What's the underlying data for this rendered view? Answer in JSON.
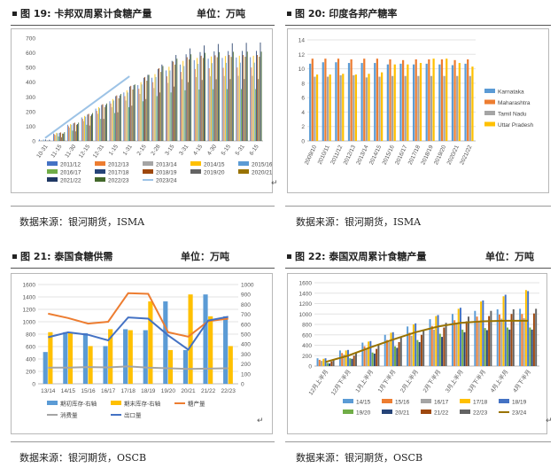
{
  "fig19": {
    "number": "图 19:",
    "title": "卡邦双周累计食糖产量",
    "unit": "单位：万吨",
    "source": "数据来源：银河期货，ISMA",
    "chart_data": {
      "type": "bar",
      "categories": [
        "10-31",
        "11-15",
        "11-30",
        "12-15",
        "12-31",
        "1-15",
        "1-31",
        "2-15",
        "2-28",
        "3-15",
        "3-31",
        "4-15",
        "4-30",
        "5-15",
        "5-31",
        "6-15"
      ],
      "tick_labels": [
        "10-31",
        "11-15",
        "11-30",
        "12-15",
        "12-31",
        "1-15",
        "1-31",
        "2-15",
        "2-28",
        "3-15",
        "3-31",
        "4-15",
        "4-30",
        "5-15",
        "5-31",
        "6-15"
      ],
      "ylim": [
        0,
        700
      ],
      "yticks": [
        0,
        100,
        200,
        300,
        400,
        500,
        600,
        700
      ],
      "series": [
        {
          "name": "2011/12",
          "color": "#4472c4",
          "values": [
            10,
            50,
            110,
            160,
            220,
            270,
            330,
            380,
            430,
            480,
            520,
            550,
            560,
            565,
            568,
            570
          ]
        },
        {
          "name": "2012/13",
          "color": "#ed7d31",
          "values": [
            8,
            45,
            100,
            150,
            205,
            255,
            305,
            355,
            400,
            440,
            470,
            490,
            495,
            498,
            500,
            500
          ]
        },
        {
          "name": "2013/14",
          "color": "#a5a5a5",
          "values": [
            5,
            40,
            90,
            135,
            185,
            230,
            275,
            320,
            360,
            395,
            420,
            435,
            440,
            442,
            443,
            443
          ]
        },
        {
          "name": "2014/15",
          "color": "#ffc000",
          "values": [
            12,
            55,
            115,
            170,
            230,
            285,
            345,
            400,
            455,
            505,
            545,
            565,
            575,
            578,
            580,
            580
          ]
        },
        {
          "name": "2015/16",
          "color": "#5b9bd5",
          "values": [
            10,
            52,
            110,
            165,
            222,
            275,
            330,
            385,
            435,
            480,
            510,
            525,
            530,
            532,
            533,
            533
          ]
        },
        {
          "name": "2016/17",
          "color": "#70ad47",
          "values": [
            5,
            30,
            70,
            110,
            150,
            190,
            230,
            270,
            305,
            330,
            345,
            350,
            352,
            353,
            353,
            353
          ]
        },
        {
          "name": "2017/18",
          "color": "#264478",
          "values": [
            10,
            55,
            120,
            180,
            245,
            305,
            370,
            430,
            490,
            545,
            590,
            605,
            610,
            612,
            613,
            613
          ]
        },
        {
          "name": "2018/19",
          "color": "#9e480e",
          "values": [
            12,
            58,
            125,
            185,
            250,
            310,
            375,
            435,
            495,
            540,
            570,
            580,
            583,
            585,
            585,
            585
          ]
        },
        {
          "name": "2019/20",
          "color": "#636363",
          "values": [
            3,
            25,
            65,
            105,
            150,
            195,
            240,
            285,
            330,
            370,
            400,
            415,
            420,
            421,
            421,
            421
          ]
        },
        {
          "name": "2020/21",
          "color": "#997300",
          "values": [
            8,
            50,
            110,
            170,
            230,
            290,
            350,
            410,
            470,
            520,
            555,
            565,
            570,
            572,
            573,
            573
          ]
        },
        {
          "name": "2021/22",
          "color": "#1f3864",
          "values": [
            8,
            50,
            115,
            180,
            245,
            310,
            380,
            450,
            520,
            585,
            630,
            650,
            660,
            665,
            668,
            670
          ]
        },
        {
          "name": "2022/23",
          "color": "#43682b",
          "values": [
            10,
            60,
            125,
            190,
            255,
            320,
            385,
            450,
            510,
            560,
            590,
            600,
            605,
            607,
            608,
            608
          ]
        }
      ],
      "line_series": {
        "name": "2023/24",
        "color": "#9dc3e6",
        "values": [
          20,
          90,
          160,
          230,
          300,
          370,
          440
        ]
      }
    }
  },
  "fig20": {
    "number": "图 20:",
    "title": "印度各邦产糖率",
    "source": "数据来源：银河期货，ISMA",
    "chart_data": {
      "type": "bar",
      "categories": [
        "2009/10",
        "2010/11",
        "2011/12",
        "2012/13",
        "2013/14",
        "2014/15",
        "2015/16",
        "2016/17",
        "2017/18",
        "2018/19",
        "2019/20",
        "2020/21",
        "2021/22"
      ],
      "ylim": [
        0,
        14
      ],
      "yticks": [
        0,
        2,
        4,
        6,
        8,
        10,
        12,
        14
      ],
      "series": [
        {
          "name": "Karnataka",
          "color": "#5b9bd5",
          "values": [
            10.7,
            10.9,
            10.9,
            10.8,
            10.8,
            10.8,
            10.6,
            10.7,
            10.6,
            10.7,
            10.6,
            10.5,
            10.7
          ]
        },
        {
          "name": "Maharashtra",
          "color": "#ed7d31",
          "values": [
            11.4,
            11.4,
            11.4,
            11.3,
            11.4,
            11.4,
            11.3,
            11.2,
            11.3,
            11.3,
            11.3,
            11.2,
            11.3
          ]
        },
        {
          "name": "Tamil Nadu",
          "color": "#a5a5a5",
          "values": [
            8.9,
            8.9,
            9.1,
            9.1,
            8.8,
            8.9,
            9.0,
            9.0,
            9.0,
            9.0,
            9.0,
            9.0,
            9.0
          ]
        },
        {
          "name": "Uttar Pradesh",
          "color": "#ffc000",
          "values": [
            9.2,
            9.2,
            9.3,
            9.2,
            9.3,
            9.5,
            10.6,
            10.6,
            10.8,
            11.4,
            11.4,
            10.8,
            10.3
          ]
        }
      ]
    }
  },
  "fig21": {
    "number": "图 21:",
    "title": "泰国食糖供需",
    "unit": "单位：万吨",
    "source": "数据来源：银河期货，OSCB",
    "chart_data": {
      "type": "bar",
      "categories": [
        "13/14",
        "14/15",
        "15/16",
        "16/17",
        "17/18",
        "18/19",
        "19/20",
        "20/21",
        "21/22",
        "22/23"
      ],
      "ylim_left": [
        0,
        1600
      ],
      "yticks_left": [
        0,
        200,
        400,
        600,
        800,
        1000,
        1200,
        1400,
        1600
      ],
      "ylim_right": [
        0,
        1000
      ],
      "yticks_right": [
        0,
        100,
        200,
        300,
        400,
        500,
        600,
        700,
        800,
        900,
        1000
      ],
      "series": [
        {
          "name": "期初库存-右轴",
          "color": "#5b9bd5",
          "axis": "right",
          "values": [
            320,
            520,
            510,
            380,
            550,
            540,
            830,
            340,
            900,
            680
          ]
        },
        {
          "name": "期末库存-右轴",
          "color": "#ffc000",
          "axis": "right",
          "values": [
            520,
            510,
            380,
            550,
            540,
            830,
            340,
            900,
            680,
            380
          ]
        },
        {
          "name": "糖产量",
          "color": "#ed7d31",
          "axis": "left",
          "kind": "line",
          "values": [
            1130,
            1060,
            970,
            1000,
            1460,
            1450,
            830,
            760,
            1010,
            1050
          ]
        },
        {
          "name": "消费量",
          "color": "#a5a5a5",
          "axis": "left",
          "kind": "line",
          "values": [
            260,
            260,
            270,
            265,
            280,
            260,
            250,
            240,
            245,
            250
          ]
        },
        {
          "name": "出口量",
          "color": "#4472c4",
          "axis": "left",
          "kind": "line",
          "values": [
            750,
            830,
            790,
            700,
            1070,
            1050,
            780,
            550,
            1020,
            1080
          ]
        }
      ]
    }
  },
  "fig22": {
    "number": "图 22:",
    "title": "泰国双周累计食糖产量",
    "unit": "单位：万吨",
    "source": "数据来源：银河期货，OSCB",
    "chart_data": {
      "type": "bar",
      "categories": [
        "12月上半月",
        "12月下半月",
        "1月上半月",
        "1月下半月",
        "2月上半月",
        "2月下半月",
        "3月上半月",
        "3月下半月",
        "4月上半月",
        "4月下半月"
      ],
      "ylim": [
        0,
        1600
      ],
      "yticks": [
        0,
        200,
        400,
        600,
        800,
        1000,
        1200,
        1400,
        1600
      ],
      "series": [
        {
          "name": "14/15",
          "color": "#5b9bd5",
          "values": [
            150,
            300,
            450,
            600,
            760,
            900,
            1000,
            1060,
            1090,
            1100
          ]
        },
        {
          "name": "15/16",
          "color": "#ed7d31",
          "values": [
            120,
            250,
            380,
            500,
            640,
            770,
            880,
            950,
            990,
            1000
          ]
        },
        {
          "name": "16/17",
          "color": "#a5a5a5",
          "values": [
            100,
            220,
            340,
            460,
            580,
            700,
            800,
            870,
            910,
            920
          ]
        },
        {
          "name": "17/18",
          "color": "#ffc000",
          "values": [
            140,
            300,
            470,
            640,
            800,
            960,
            1100,
            1240,
            1340,
            1460
          ]
        },
        {
          "name": "18/19",
          "color": "#4472c4",
          "values": [
            150,
            310,
            480,
            650,
            820,
            980,
            1120,
            1260,
            1370,
            1440
          ]
        },
        {
          "name": "19/20",
          "color": "#70ad47",
          "values": [
            60,
            150,
            260,
            380,
            500,
            620,
            700,
            730,
            740,
            740
          ]
        },
        {
          "name": "20/21",
          "color": "#264478",
          "values": [
            50,
            140,
            240,
            350,
            460,
            560,
            650,
            690,
            700,
            700
          ]
        },
        {
          "name": "21/22",
          "color": "#9e480e",
          "values": [
            90,
            200,
            330,
            460,
            600,
            740,
            860,
            960,
            1000,
            1010
          ]
        },
        {
          "name": "22/23",
          "color": "#636363",
          "values": [
            120,
            260,
            410,
            560,
            700,
            830,
            950,
            1060,
            1090,
            1100
          ]
        }
      ],
      "line_series": {
        "name": "23/24",
        "color": "#997300",
        "values": [
          80,
          200,
          360,
          510,
          650,
          760,
          830,
          860,
          870,
          870
        ]
      }
    }
  }
}
